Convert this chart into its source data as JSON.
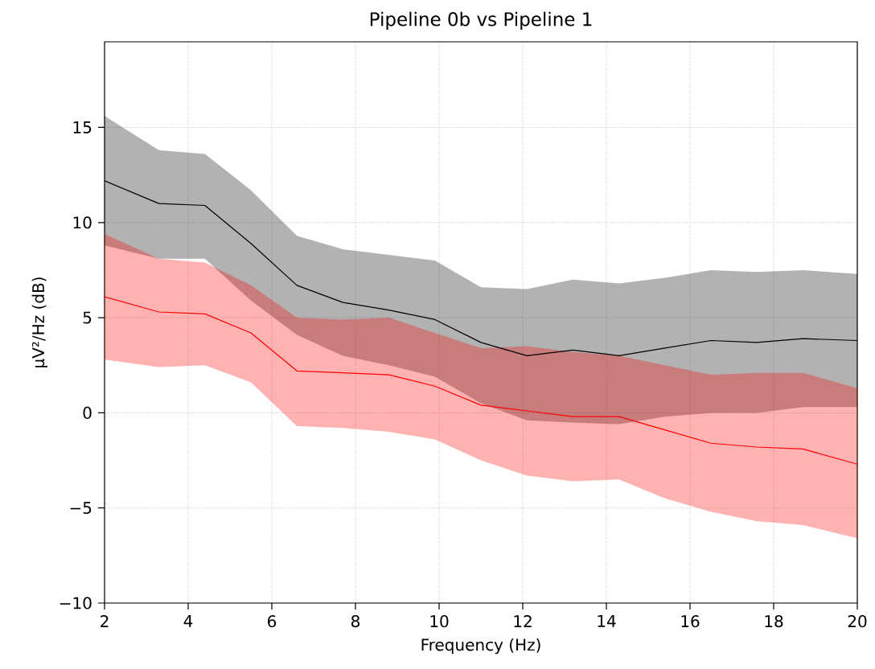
{
  "chart_data": {
    "type": "line",
    "title": "Pipeline 0b vs Pipeline 1",
    "xlabel": "Frequency (Hz)",
    "ylabel": "μV²/Hz (dB)",
    "x": [
      2,
      3.3,
      4.4,
      5.5,
      6.6,
      7.7,
      8.8,
      9.9,
      11,
      12.1,
      13.2,
      14.3,
      15.4,
      16.5,
      17.6,
      18.7,
      20
    ],
    "series": [
      {
        "color": "#000000",
        "values": [
          12.2,
          11.0,
          10.9,
          8.9,
          6.7,
          5.8,
          5.4,
          4.9,
          3.7,
          3.0,
          3.3,
          3.0,
          3.4,
          3.8,
          3.7,
          3.9,
          3.8
        ],
        "upper": [
          15.6,
          13.8,
          13.6,
          11.7,
          9.3,
          8.6,
          8.3,
          8.0,
          6.6,
          6.5,
          7.0,
          6.8,
          7.1,
          7.5,
          7.4,
          7.5,
          7.3
        ],
        "lower": [
          8.8,
          8.1,
          8.1,
          5.9,
          4.1,
          3.0,
          2.5,
          1.9,
          0.5,
          -0.4,
          -0.51,
          -0.6,
          -0.2,
          0.0,
          0.0,
          0.3,
          0.3
        ]
      },
      {
        "color": "#ff0000",
        "values": [
          6.1,
          5.3,
          5.2,
          4.2,
          2.2,
          2.1,
          2.0,
          1.4,
          0.4,
          0.1,
          -0.2,
          -0.2,
          -0.9,
          -1.6,
          -1.8,
          -1.9,
          -2.7
        ],
        "upper": [
          9.4,
          8.1,
          7.9,
          6.7,
          5.0,
          4.9,
          5.0,
          4.2,
          3.4,
          3.5,
          3.2,
          3.0,
          2.5,
          2.0,
          2.1,
          2.1,
          1.3
        ],
        "lower": [
          2.8,
          2.4,
          2.5,
          1.6,
          -0.7,
          -0.8,
          -1.0,
          -1.4,
          -2.5,
          -3.3,
          -3.6,
          -3.5,
          -4.5,
          -5.2,
          -5.7,
          -5.9,
          -6.6
        ]
      }
    ],
    "xlim": [
      2,
      20
    ],
    "ylim": [
      -10,
      19.5
    ],
    "xticks": [
      2,
      4,
      6,
      8,
      10,
      12,
      14,
      16,
      18,
      20
    ],
    "yticks": [
      {
        "value": -10,
        "label": "−10"
      },
      {
        "value": -5,
        "label": "−5"
      },
      0,
      5,
      10,
      15
    ],
    "grid": true,
    "line_style": "solid",
    "marker": "none"
  }
}
